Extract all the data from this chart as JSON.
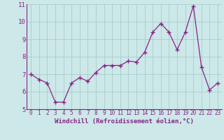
{
  "x": [
    0,
    1,
    2,
    3,
    4,
    5,
    6,
    7,
    8,
    9,
    10,
    11,
    12,
    13,
    14,
    15,
    16,
    17,
    18,
    19,
    20,
    21,
    22,
    23
  ],
  "y": [
    7.0,
    6.7,
    6.5,
    5.4,
    5.4,
    6.5,
    6.8,
    6.6,
    7.1,
    7.5,
    7.5,
    7.5,
    7.75,
    7.7,
    8.25,
    9.4,
    9.9,
    9.4,
    8.4,
    9.4,
    10.9,
    7.4,
    6.1,
    6.5
  ],
  "line_color": "#882288",
  "marker": "+",
  "marker_size": 4,
  "bg_color": "#cce8e8",
  "grid_color": "#aacccc",
  "xlabel": "Windchill (Refroidissement éolien,°C)",
  "xlabel_color": "#882288",
  "tick_color": "#882288",
  "axis_color": "#882288",
  "ylim": [
    5,
    11
  ],
  "xlim": [
    -0.5,
    23.5
  ],
  "yticks": [
    5,
    6,
    7,
    8,
    9,
    10,
    11
  ],
  "xticks": [
    0,
    1,
    2,
    3,
    4,
    5,
    6,
    7,
    8,
    9,
    10,
    11,
    12,
    13,
    14,
    15,
    16,
    17,
    18,
    19,
    20,
    21,
    22,
    23
  ],
  "xlabel_fontsize": 6.5,
  "tick_fontsize_x": 5.5,
  "tick_fontsize_y": 6.5
}
